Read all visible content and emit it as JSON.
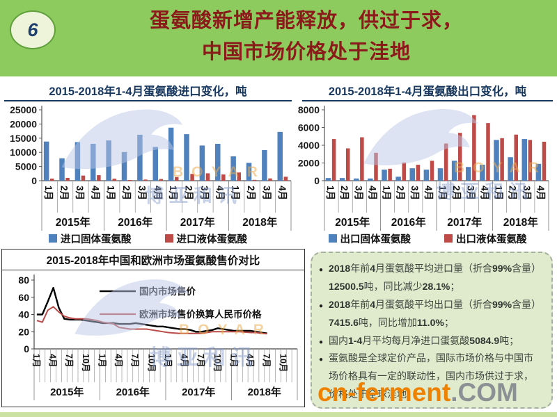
{
  "page": {
    "number": "6",
    "title_line1": "蛋氨酸新增产能释放，供过于求，",
    "title_line2": "中国市场价格处于洼地"
  },
  "colors": {
    "header_green": "#8ecb5f",
    "title_red": "#8b1a1a",
    "navy": "#17375e",
    "bar_blue": "#4f81bd",
    "bar_red": "#bf4b48",
    "line_black": "#000000",
    "line_red": "#b94a48",
    "panel_bg": "#e0eacc",
    "brand_orange": "#ee8200",
    "brand_gray": "#8b9094"
  },
  "chart_data": [
    {
      "id": "import",
      "type": "bar",
      "title": "2015-2018年1-4月蛋氨酸进口变化，吨",
      "years": [
        "2015年",
        "2016年",
        "2017年",
        "2018年"
      ],
      "months_per_year": [
        "1月",
        "2月",
        "3月",
        "4月"
      ],
      "ylim": [
        0,
        25000
      ],
      "yticks": [
        0,
        5000,
        10000,
        15000,
        20000,
        25000
      ],
      "series": [
        {
          "name": "进口固体蛋氨酸",
          "color": "#4f81bd",
          "values": [
            13800,
            7900,
            13600,
            13000,
            14200,
            10100,
            16200,
            11900,
            18700,
            16400,
            12400,
            13000,
            8600,
            6300,
            10800,
            17200
          ]
        },
        {
          "name": "进口液体蛋氨酸",
          "color": "#bf4b48",
          "values": [
            750,
            1000,
            1800,
            1950,
            700,
            250,
            400,
            600,
            1300,
            2400,
            2600,
            2200,
            2900,
            300,
            800,
            1400
          ]
        }
      ]
    },
    {
      "id": "export",
      "type": "bar",
      "title": "2015-2018年1-4月蛋氨酸出口变化，吨",
      "years": [
        "2015年",
        "2016年",
        "2017年",
        "2018年"
      ],
      "months_per_year": [
        "1月",
        "2月",
        "3月",
        "4月"
      ],
      "ylim": [
        0,
        8000
      ],
      "yticks": [
        0,
        2000,
        4000,
        6000,
        8000
      ],
      "series": [
        {
          "name": "出口固体蛋氨酸",
          "color": "#4f81bd",
          "values": [
            300,
            300,
            250,
            250,
            1250,
            450,
            1400,
            1250,
            1400,
            2250,
            1550,
            1800,
            4600,
            2650,
            4700,
            1900
          ]
        },
        {
          "name": "出口液体蛋氨酸",
          "color": "#bf4b48",
          "values": [
            4700,
            3650,
            4900,
            3150,
            1350,
            2050,
            1800,
            2250,
            4200,
            5400,
            7400,
            6500,
            4800,
            5200,
            4600,
            4400
          ]
        }
      ]
    },
    {
      "id": "price",
      "type": "line",
      "title": "2015-2018年中国和欧洲市场蛋氨酸售价对比",
      "years": [
        "2015年",
        "2016年",
        "2017年",
        "2018年"
      ],
      "x_tick_labels": [
        "1月",
        "4月",
        "7月",
        "10月"
      ],
      "months_total": 48,
      "ylim": [
        0,
        80
      ],
      "yticks": [
        0,
        20,
        40,
        60,
        80
      ],
      "series": [
        {
          "name": "国内市场售价",
          "color": "#000000",
          "values": [
            40,
            40,
            55,
            71,
            48,
            35,
            34,
            34,
            34,
            33,
            32,
            31,
            30,
            30,
            30,
            29,
            29,
            29,
            30,
            29,
            28,
            27,
            26,
            26,
            25,
            24,
            23,
            23,
            22,
            20,
            20,
            21,
            22,
            24,
            23,
            22,
            21,
            21,
            21,
            21,
            20,
            19,
            18
          ]
        },
        {
          "name": "欧洲市场售价换算人民币价格",
          "color": "#b94a48",
          "values": [
            33,
            31,
            45,
            49,
            43,
            38,
            36,
            35,
            35,
            35,
            34,
            33,
            31,
            30,
            29,
            25,
            24,
            23,
            23,
            23,
            23,
            22,
            21,
            20,
            19,
            18.5,
            18,
            18,
            18,
            18,
            18,
            19,
            20,
            20,
            20,
            20,
            20,
            20,
            19.5,
            19,
            19,
            18,
            17.5
          ]
        }
      ]
    }
  ],
  "bullets": [
    "2018年前4月蛋氨酸平均进口量（折合99%含量）12500.5吨，同比减少28.1%；",
    "2018年前4月蛋氨酸平均出口量（折合99%含量）7415.6吨，同比增加11.0%；",
    "国内1-4月平均每月净进口蛋氨酸5084.9吨；",
    "蛋氨酸是全球定价产品，国际市场价格与中国市场价格具有一定的联动性，国内市场供过于求，价格处于全球洼地"
  ],
  "brand": {
    "name": "cn-ferment",
    "tld": ".COM"
  },
  "boyar": {
    "latin": "BOYAR",
    "cjk": "博亚和讯"
  }
}
